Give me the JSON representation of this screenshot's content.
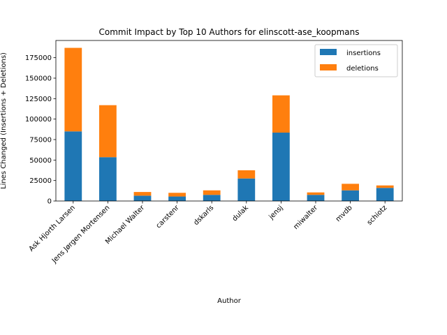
{
  "chart_data": {
    "type": "bar",
    "stacked": true,
    "title": "Commit Impact by Top 10 Authors for elinscott-ase_koopmans",
    "xlabel": "Author",
    "ylabel": "Lines Changed (Insertions + Deletions)",
    "categories": [
      "Ask Hjorth Larsen",
      "Jens Jørgen Mortensen",
      "Michael Walter",
      "carstenr",
      "dskarls",
      "dulak",
      "jensj",
      "miwalter",
      "mvdb",
      "schiotz"
    ],
    "series": [
      {
        "name": "insertions",
        "color": "#1f77b4",
        "values": [
          85000,
          53500,
          6500,
          5500,
          7500,
          27500,
          83500,
          7500,
          13000,
          16000
        ]
      },
      {
        "name": "deletions",
        "color": "#ff7f0e",
        "values": [
          102000,
          63500,
          4500,
          4500,
          5500,
          10000,
          45500,
          3000,
          8000,
          3000
        ]
      }
    ],
    "ylim": [
      0,
      196000
    ],
    "yticks": [
      0,
      25000,
      50000,
      75000,
      100000,
      125000,
      150000,
      175000
    ],
    "ytick_labels": [
      "0",
      "25000",
      "50000",
      "75000",
      "100000",
      "125000",
      "150000",
      "175000"
    ],
    "legend": {
      "placement": "top-right"
    },
    "grid": false
  }
}
